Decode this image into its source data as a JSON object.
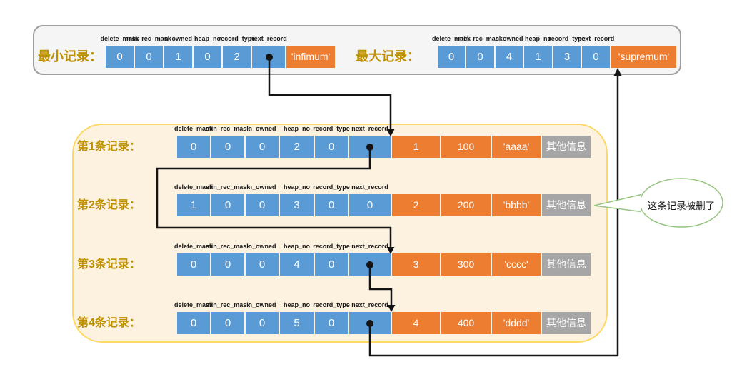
{
  "colors": {
    "cell_blue": "#5b9bd5",
    "cell_orange": "#ed7d31",
    "cell_gray": "#a6a6a6",
    "label_gold": "#bf9000",
    "top_box_bg": "#f5f5f5",
    "top_box_border": "#9e9e9e",
    "main_box_bg": "#fdf2e0",
    "main_box_border": "#ffd966",
    "arrow_black": "#141414",
    "bubble_green": "#94c47f"
  },
  "field_labels": [
    "delete_mask",
    "min_rec_mask",
    "n_owned",
    "heap_no",
    "record_type",
    "next_record"
  ],
  "top_section": {
    "min_record": {
      "label": "最小记录：",
      "cells": [
        "0",
        "0",
        "1",
        "0",
        "2"
      ],
      "next_cell": {
        "text": "",
        "has_pointer_dot": true
      },
      "tail_text": "'infimum'"
    },
    "max_record": {
      "label": "最大记录：",
      "cells": [
        "0",
        "0",
        "4",
        "1",
        "3"
      ],
      "next_cell": {
        "text": "0",
        "has_pointer_dot": false
      },
      "tail_text": "'supremum'"
    }
  },
  "records": [
    {
      "label": "第1条记录：",
      "cells": [
        "0",
        "0",
        "0",
        "2",
        "0"
      ],
      "next_cell": {
        "text": "",
        "has_pointer_dot": true
      },
      "data_cells": [
        "1",
        "100",
        "'aaaa'"
      ],
      "extra_label": "其他信息"
    },
    {
      "label": "第2条记录：",
      "cells": [
        "1",
        "0",
        "0",
        "3",
        "0"
      ],
      "next_cell": {
        "text": "0",
        "has_pointer_dot": false
      },
      "data_cells": [
        "2",
        "200",
        "'bbbb'"
      ],
      "extra_label": "其他信息"
    },
    {
      "label": "第3条记录：",
      "cells": [
        "0",
        "0",
        "0",
        "4",
        "0"
      ],
      "next_cell": {
        "text": "",
        "has_pointer_dot": true
      },
      "data_cells": [
        "3",
        "300",
        "'cccc'"
      ],
      "extra_label": "其他信息"
    },
    {
      "label": "第4条记录：",
      "cells": [
        "0",
        "0",
        "0",
        "5",
        "0"
      ],
      "next_cell": {
        "text": "",
        "has_pointer_dot": true
      },
      "data_cells": [
        "4",
        "400",
        "'dddd'"
      ],
      "extra_label": "其他信息"
    }
  ],
  "bubble": {
    "text": "这条记录被删了"
  }
}
